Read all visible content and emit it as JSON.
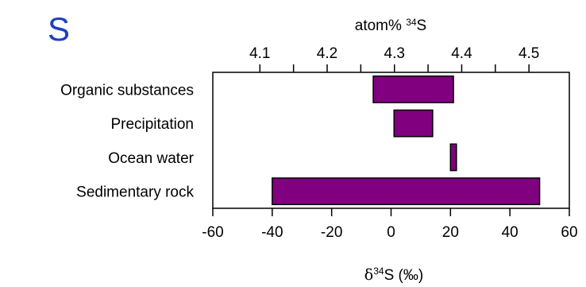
{
  "chart_data": {
    "type": "bar",
    "orientation": "horizontal",
    "subtype": "range",
    "panel_label": "S",
    "categories": [
      "Organic substances",
      "Precipitation",
      "Ocean water",
      "Sedimentary rock"
    ],
    "series": [
      {
        "ranges": [
          [
            -6,
            21
          ],
          [
            1,
            14
          ],
          [
            20,
            22
          ],
          [
            -40,
            50
          ]
        ]
      }
    ],
    "bar_color": "#800080",
    "xlabel_prefix": "δ",
    "xlabel_sup": "34",
    "xlabel_suffix": "S (‰)",
    "xlim": [
      -60,
      60
    ],
    "xticks": [
      -60,
      -40,
      -20,
      0,
      20,
      40,
      60
    ],
    "xtick_labels": [
      "-60",
      "-40",
      "-20",
      "0",
      "20",
      "40",
      "60"
    ],
    "top_axis": {
      "label_prefix": "atom% ",
      "label_sup": "34",
      "label_suffix": "S",
      "ticks": [
        4.1,
        4.2,
        4.3,
        4.4,
        4.5
      ],
      "tick_labels": [
        "4.1",
        "4.2",
        "4.3",
        "4.4",
        "4.5"
      ],
      "lim": [
        4.03,
        4.56
      ]
    },
    "grid": false,
    "legend": "none"
  }
}
